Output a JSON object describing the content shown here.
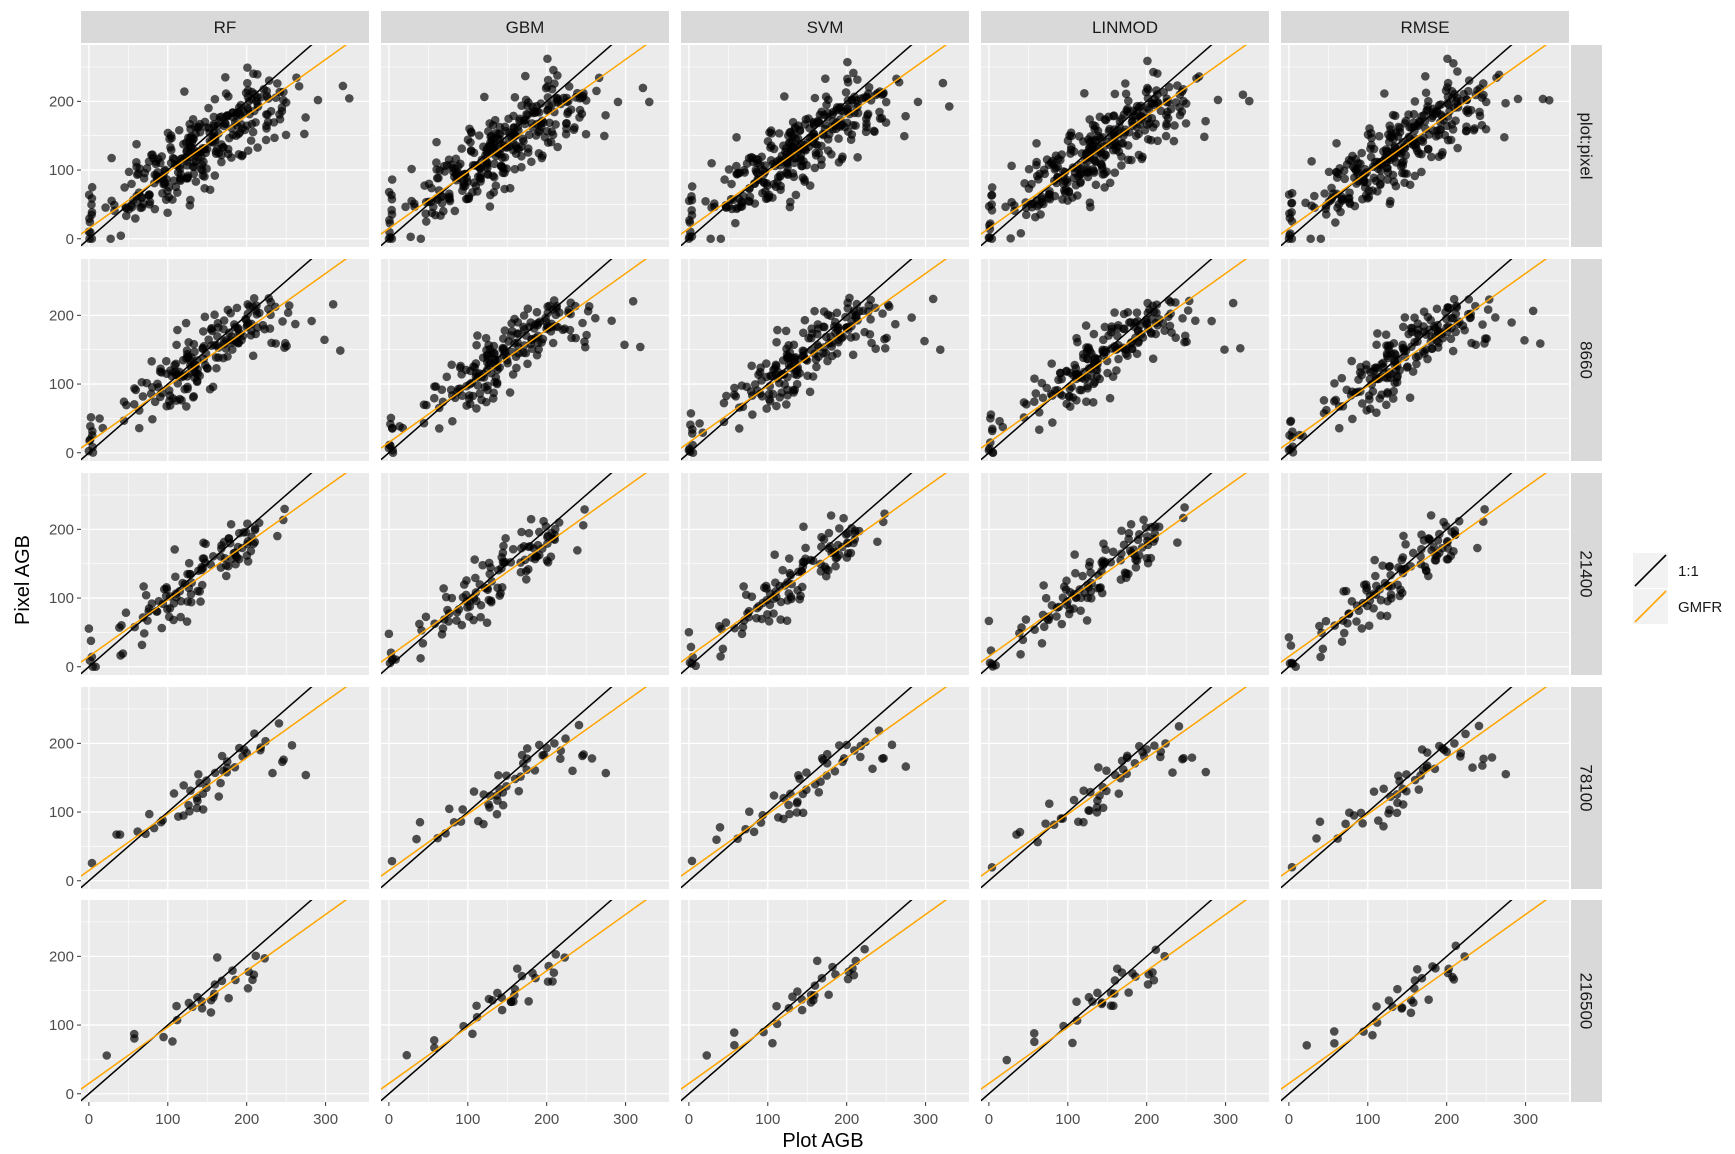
{
  "chart_data": {
    "type": "scatter",
    "xlabel": "Plot AGB",
    "ylabel": "Pixel AGB",
    "xlim": [
      -10,
      355
    ],
    "ylim": [
      -12,
      282
    ],
    "x_ticks": [
      0,
      100,
      200,
      300
    ],
    "x_tick_labels": [
      "0",
      "100",
      "200",
      "300"
    ],
    "y_ticks": [
      0,
      100,
      200
    ],
    "y_tick_labels": [
      "0",
      "100",
      "200"
    ],
    "grid": true,
    "legend_position": "right",
    "columns": [
      "RF",
      "GBM",
      "SVM",
      "LINMOD",
      "RMSE"
    ],
    "rows": [
      "plot:pixel",
      "8660",
      "21400",
      "78100",
      "216500"
    ],
    "legend": [
      {
        "label": "1:1",
        "color": "#000000"
      },
      {
        "label": "GMFR",
        "color": "#FFA500"
      }
    ],
    "lines": {
      "one_to_one": {
        "slope": 1,
        "intercept": 0
      },
      "gmfr": {
        "slope": 0.82,
        "intercept": 15
      }
    },
    "point_counts": [
      300,
      190,
      110,
      48,
      28
    ],
    "colors": {
      "point": "#000000",
      "one_to_one": "#000000",
      "gmfr": "#FFA500",
      "panel": "#EBEBEB",
      "strip": "#D9D9D9",
      "grid": "#FFFFFF"
    }
  }
}
